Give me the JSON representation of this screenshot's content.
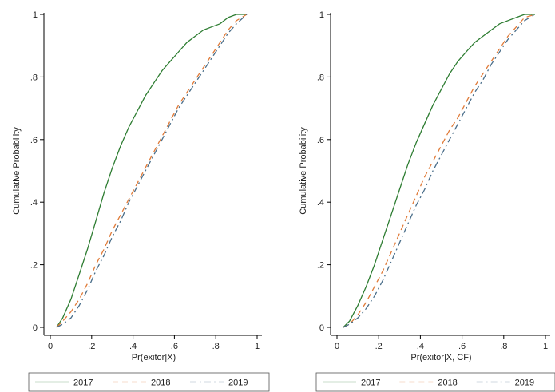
{
  "colors": {
    "2017": "#2e7d32",
    "2018": "#e07b39",
    "2019": "#4a6e8a",
    "axis": "#000000"
  },
  "chart_data": [
    {
      "type": "line",
      "xlabel": "Pr(exitor|X)",
      "ylabel": "Cumulative Probability",
      "xlim": [
        0,
        1
      ],
      "ylim": [
        0,
        1
      ],
      "xticks": [
        0,
        0.2,
        0.4,
        0.6,
        0.8,
        1
      ],
      "xtick_labels": [
        "0",
        ".2",
        ".4",
        ".6",
        ".8",
        "1"
      ],
      "yticks": [
        0,
        0.2,
        0.4,
        0.6,
        0.8,
        1
      ],
      "ytick_labels": [
        "0",
        ".2",
        ".4",
        ".6",
        ".8",
        "1"
      ],
      "grid": false,
      "legend_position": "bottom",
      "series": [
        {
          "name": "2017",
          "style": "solid",
          "color": "#2e7d32",
          "x": [
            0.03,
            0.06,
            0.1,
            0.14,
            0.18,
            0.22,
            0.26,
            0.3,
            0.34,
            0.38,
            0.42,
            0.46,
            0.5,
            0.54,
            0.58,
            0.62,
            0.66,
            0.7,
            0.74,
            0.78,
            0.82,
            0.86,
            0.9,
            0.95
          ],
          "y": [
            0.0,
            0.03,
            0.09,
            0.17,
            0.25,
            0.34,
            0.43,
            0.51,
            0.58,
            0.64,
            0.69,
            0.74,
            0.78,
            0.82,
            0.85,
            0.88,
            0.91,
            0.93,
            0.95,
            0.96,
            0.97,
            0.99,
            1.0,
            1.0
          ]
        },
        {
          "name": "2018",
          "style": "dash",
          "color": "#e07b39",
          "x": [
            0.03,
            0.06,
            0.1,
            0.14,
            0.18,
            0.22,
            0.26,
            0.3,
            0.34,
            0.38,
            0.42,
            0.46,
            0.5,
            0.54,
            0.58,
            0.62,
            0.66,
            0.7,
            0.74,
            0.78,
            0.82,
            0.86,
            0.9,
            0.95
          ],
          "y": [
            0.0,
            0.02,
            0.05,
            0.09,
            0.14,
            0.2,
            0.25,
            0.31,
            0.36,
            0.41,
            0.46,
            0.51,
            0.56,
            0.61,
            0.66,
            0.71,
            0.75,
            0.79,
            0.83,
            0.87,
            0.91,
            0.95,
            0.98,
            1.0
          ]
        },
        {
          "name": "2019",
          "style": "dashdot",
          "color": "#4a6e8a",
          "x": [
            0.03,
            0.06,
            0.1,
            0.14,
            0.18,
            0.22,
            0.26,
            0.3,
            0.34,
            0.38,
            0.42,
            0.46,
            0.5,
            0.54,
            0.58,
            0.62,
            0.66,
            0.7,
            0.74,
            0.78,
            0.82,
            0.86,
            0.9,
            0.95
          ],
          "y": [
            0.0,
            0.01,
            0.03,
            0.07,
            0.12,
            0.18,
            0.23,
            0.29,
            0.34,
            0.4,
            0.45,
            0.5,
            0.55,
            0.6,
            0.65,
            0.7,
            0.74,
            0.78,
            0.82,
            0.86,
            0.9,
            0.94,
            0.97,
            1.0
          ]
        }
      ]
    },
    {
      "type": "line",
      "xlabel": "Pr(exitor|X, CF)",
      "ylabel": "Cumulative Probability",
      "xlim": [
        0,
        1
      ],
      "ylim": [
        0,
        1
      ],
      "xticks": [
        0,
        0.2,
        0.4,
        0.6,
        0.8,
        1
      ],
      "xtick_labels": [
        "0",
        ".2",
        ".4",
        ".6",
        ".8",
        "1"
      ],
      "yticks": [
        0,
        0.2,
        0.4,
        0.6,
        0.8,
        1
      ],
      "ytick_labels": [
        "0",
        ".2",
        ".4",
        ".6",
        ".8",
        "1"
      ],
      "grid": false,
      "legend_position": "bottom",
      "series": [
        {
          "name": "2017",
          "style": "solid",
          "color": "#2e7d32",
          "x": [
            0.03,
            0.06,
            0.1,
            0.14,
            0.18,
            0.22,
            0.26,
            0.3,
            0.34,
            0.38,
            0.42,
            0.46,
            0.5,
            0.54,
            0.58,
            0.62,
            0.66,
            0.7,
            0.74,
            0.78,
            0.82,
            0.86,
            0.9,
            0.95
          ],
          "y": [
            0.0,
            0.02,
            0.07,
            0.13,
            0.2,
            0.28,
            0.36,
            0.44,
            0.52,
            0.59,
            0.65,
            0.71,
            0.76,
            0.81,
            0.85,
            0.88,
            0.91,
            0.93,
            0.95,
            0.97,
            0.98,
            0.99,
            1.0,
            1.0
          ]
        },
        {
          "name": "2018",
          "style": "dash",
          "color": "#e07b39",
          "x": [
            0.03,
            0.06,
            0.1,
            0.14,
            0.18,
            0.22,
            0.26,
            0.3,
            0.34,
            0.38,
            0.42,
            0.46,
            0.5,
            0.54,
            0.58,
            0.62,
            0.66,
            0.7,
            0.74,
            0.78,
            0.82,
            0.86,
            0.9,
            0.95
          ],
          "y": [
            0.0,
            0.01,
            0.04,
            0.08,
            0.13,
            0.18,
            0.24,
            0.3,
            0.36,
            0.42,
            0.48,
            0.53,
            0.58,
            0.63,
            0.67,
            0.72,
            0.77,
            0.81,
            0.85,
            0.89,
            0.93,
            0.96,
            0.99,
            1.0
          ]
        },
        {
          "name": "2019",
          "style": "dashdot",
          "color": "#4a6e8a",
          "x": [
            0.03,
            0.06,
            0.1,
            0.14,
            0.18,
            0.22,
            0.26,
            0.3,
            0.34,
            0.38,
            0.42,
            0.46,
            0.5,
            0.54,
            0.58,
            0.62,
            0.66,
            0.7,
            0.74,
            0.78,
            0.82,
            0.86,
            0.9,
            0.95
          ],
          "y": [
            0.0,
            0.01,
            0.03,
            0.06,
            0.1,
            0.15,
            0.21,
            0.27,
            0.33,
            0.39,
            0.44,
            0.5,
            0.55,
            0.6,
            0.65,
            0.7,
            0.75,
            0.79,
            0.84,
            0.88,
            0.92,
            0.95,
            0.98,
            1.0
          ]
        }
      ]
    }
  ]
}
